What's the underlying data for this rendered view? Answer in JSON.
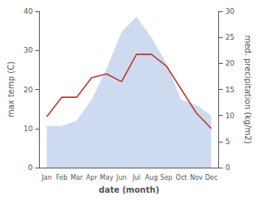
{
  "chart_data": {
    "type": "line",
    "categories": [
      "Jan",
      "Feb",
      "Mar",
      "Apr",
      "May",
      "Jun",
      "Jul",
      "Aug",
      "Sep",
      "Oct",
      "Nov",
      "Dec"
    ],
    "xlabel": "date (month)",
    "ylabel": "max temp (C)",
    "y2label": "med. precipitation (kg/m2)",
    "series": [
      {
        "type": "area",
        "color": "#b3c6e8",
        "axis": "y2",
        "values": [
          8,
          8,
          9,
          13,
          19,
          26,
          29,
          25,
          20,
          13,
          12,
          10
        ]
      },
      {
        "type": "line",
        "color": "#c0392b",
        "values": [
          13,
          18,
          18,
          23,
          24,
          22,
          29,
          29,
          26,
          20,
          14,
          10
        ]
      }
    ],
    "ylim": [
      0,
      40
    ],
    "yticks": [
      0,
      10,
      20,
      30,
      40
    ],
    "y2lim": [
      0,
      30
    ],
    "y2ticks": [
      0,
      5,
      10,
      15,
      20,
      25,
      30
    ],
    "grid": false
  }
}
